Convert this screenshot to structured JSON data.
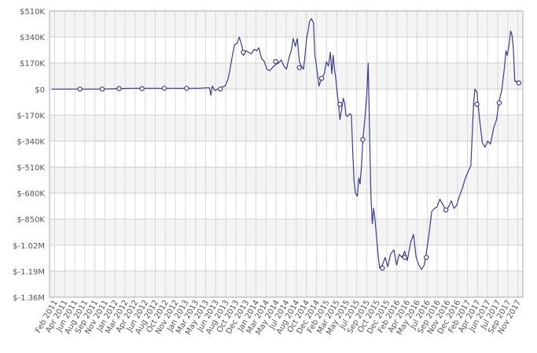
{
  "chart_data": {
    "type": "line",
    "title": "",
    "xlabel": "",
    "ylabel": "",
    "y_ticks": [
      "$510K",
      "$340K",
      "$170K",
      "$0",
      "$-170K",
      "$-340K",
      "$-510K",
      "$-680K",
      "$-850K",
      "$-1.02M",
      "$-1.19M",
      "$-1.36M"
    ],
    "y_tick_values": [
      510000,
      340000,
      170000,
      0,
      -170000,
      -340000,
      -510000,
      -680000,
      -850000,
      -1020000,
      -1190000,
      -1360000
    ],
    "ylim": [
      -1360000,
      510000
    ],
    "x_tick_labels": [
      "Feb 2011",
      "Apr 2011",
      "Jun 2011",
      "Aug 2011",
      "Sep 2011",
      "Nov 2011",
      "Jan 2012",
      "Mar 2012",
      "Apr 2012",
      "Jun 2012",
      "Aug 2012",
      "Oct 2012",
      "Nov 2012",
      "Jan 2013",
      "Mar 2013",
      "May 2013",
      "Jun 2013",
      "Aug 2013",
      "Oct 2013",
      "Dec 2013",
      "Jan 2014",
      "Mar 2014",
      "May 2014",
      "Jul 2014",
      "Aug 2014",
      "Oct 2014",
      "Dec 2014",
      "Feb 2015",
      "Mar 2015",
      "May 2015",
      "Jul 2015",
      "Sep 2015",
      "Oct 2015",
      "Dec 2015",
      "Feb 2016",
      "Apr 2016",
      "May 2016",
      "Jul 2016",
      "Sep 2016",
      "Nov 2016",
      "Dec 2016",
      "Feb 2017",
      "Apr 2017",
      "Jun 2017",
      "Jul 2017",
      "Sep 2017",
      "Nov 2017"
    ],
    "grid": true,
    "line_color": "#3b3b8f",
    "series": [
      {
        "values": [
          [
            2011.08,
            0
          ],
          [
            2011.5,
            0
          ],
          [
            2011.83,
            0
          ],
          [
            2012.0,
            2000
          ],
          [
            2012.25,
            5000
          ],
          [
            2012.5,
            5000
          ],
          [
            2012.75,
            5000
          ],
          [
            2013.0,
            5000
          ],
          [
            2013.25,
            5000
          ],
          [
            2013.38,
            8000
          ],
          [
            2013.42,
            8000
          ],
          [
            2013.44,
            -40000
          ],
          [
            2013.46,
            20000
          ],
          [
            2013.5,
            -10000
          ],
          [
            2013.54,
            0
          ],
          [
            2013.58,
            10000
          ],
          [
            2013.65,
            20000
          ],
          [
            2013.69,
            60000
          ],
          [
            2013.72,
            120000
          ],
          [
            2013.75,
            200000
          ],
          [
            2013.79,
            290000
          ],
          [
            2013.83,
            300000
          ],
          [
            2013.86,
            340000
          ],
          [
            2013.9,
            280000
          ],
          [
            2013.92,
            220000
          ],
          [
            2013.96,
            250000
          ],
          [
            2014.0,
            240000
          ],
          [
            2014.04,
            230000
          ],
          [
            2014.08,
            260000
          ],
          [
            2014.12,
            250000
          ],
          [
            2014.15,
            270000
          ],
          [
            2014.19,
            200000
          ],
          [
            2014.23,
            180000
          ],
          [
            2014.27,
            130000
          ],
          [
            2014.31,
            120000
          ],
          [
            2014.35,
            140000
          ],
          [
            2014.4,
            160000
          ],
          [
            2014.44,
            170000
          ],
          [
            2014.48,
            190000
          ],
          [
            2014.52,
            150000
          ],
          [
            2014.56,
            130000
          ],
          [
            2014.6,
            210000
          ],
          [
            2014.63,
            250000
          ],
          [
            2014.66,
            330000
          ],
          [
            2014.69,
            280000
          ],
          [
            2014.72,
            330000
          ],
          [
            2014.75,
            180000
          ],
          [
            2014.78,
            150000
          ],
          [
            2014.81,
            130000
          ],
          [
            2014.83,
            200000
          ],
          [
            2014.86,
            340000
          ],
          [
            2014.88,
            380000
          ],
          [
            2014.9,
            440000
          ],
          [
            2014.93,
            460000
          ],
          [
            2014.96,
            430000
          ],
          [
            2014.98,
            220000
          ],
          [
            2015.0,
            160000
          ],
          [
            2015.04,
            20000
          ],
          [
            2015.08,
            70000
          ],
          [
            2015.12,
            100000
          ],
          [
            2015.15,
            180000
          ],
          [
            2015.18,
            150000
          ],
          [
            2015.21,
            240000
          ],
          [
            2015.23,
            100000
          ],
          [
            2015.25,
            220000
          ],
          [
            2015.27,
            130000
          ],
          [
            2015.29,
            70000
          ],
          [
            2015.31,
            -20000
          ],
          [
            2015.33,
            -100000
          ],
          [
            2015.35,
            -200000
          ],
          [
            2015.37,
            -150000
          ],
          [
            2015.4,
            -60000
          ],
          [
            2015.42,
            -90000
          ],
          [
            2015.44,
            -170000
          ],
          [
            2015.46,
            -180000
          ],
          [
            2015.5,
            -160000
          ],
          [
            2015.52,
            -170000
          ],
          [
            2015.54,
            -400000
          ],
          [
            2015.56,
            -600000
          ],
          [
            2015.58,
            -680000
          ],
          [
            2015.61,
            -700000
          ],
          [
            2015.63,
            -580000
          ],
          [
            2015.65,
            -620000
          ],
          [
            2015.67,
            -500000
          ],
          [
            2015.69,
            -330000
          ],
          [
            2015.72,
            -200000
          ],
          [
            2015.75,
            -30000
          ],
          [
            2015.77,
            170000
          ],
          [
            2015.79,
            -300000
          ],
          [
            2015.81,
            -700000
          ],
          [
            2015.83,
            -880000
          ],
          [
            2015.85,
            -780000
          ],
          [
            2015.87,
            -850000
          ],
          [
            2015.92,
            -1100000
          ],
          [
            2015.94,
            -1170000
          ],
          [
            2015.98,
            -1150000
          ],
          [
            2016.02,
            -1100000
          ],
          [
            2016.06,
            -1160000
          ],
          [
            2016.1,
            -1080000
          ],
          [
            2016.15,
            -1050000
          ],
          [
            2016.19,
            -1150000
          ],
          [
            2016.23,
            -1080000
          ],
          [
            2016.27,
            -1100000
          ],
          [
            2016.31,
            -1060000
          ],
          [
            2016.35,
            -1120000
          ],
          [
            2016.4,
            -1000000
          ],
          [
            2016.44,
            -950000
          ],
          [
            2016.48,
            -1100000
          ],
          [
            2016.52,
            -1150000
          ],
          [
            2016.56,
            -1180000
          ],
          [
            2016.6,
            -1150000
          ],
          [
            2016.63,
            -1070000
          ],
          [
            2016.67,
            -950000
          ],
          [
            2016.71,
            -800000
          ],
          [
            2016.75,
            -780000
          ],
          [
            2016.79,
            -770000
          ],
          [
            2016.83,
            -720000
          ],
          [
            2016.88,
            -760000
          ],
          [
            2016.92,
            -790000
          ],
          [
            2016.96,
            -770000
          ],
          [
            2017.0,
            -730000
          ],
          [
            2017.04,
            -780000
          ],
          [
            2017.08,
            -760000
          ],
          [
            2017.12,
            -700000
          ],
          [
            2017.17,
            -640000
          ],
          [
            2017.21,
            -580000
          ],
          [
            2017.25,
            -540000
          ],
          [
            2017.29,
            -500000
          ],
          [
            2017.31,
            -300000
          ],
          [
            2017.33,
            -100000
          ],
          [
            2017.35,
            0
          ],
          [
            2017.38,
            -20000
          ],
          [
            2017.42,
            -200000
          ],
          [
            2017.46,
            -350000
          ],
          [
            2017.5,
            -380000
          ],
          [
            2017.54,
            -340000
          ],
          [
            2017.58,
            -360000
          ],
          [
            2017.63,
            -250000
          ],
          [
            2017.67,
            -200000
          ],
          [
            2017.71,
            -80000
          ],
          [
            2017.75,
            0
          ],
          [
            2017.79,
            150000
          ],
          [
            2017.81,
            250000
          ],
          [
            2017.83,
            220000
          ],
          [
            2017.85,
            270000
          ],
          [
            2017.88,
            380000
          ],
          [
            2017.9,
            350000
          ],
          [
            2017.92,
            260000
          ],
          [
            2017.94,
            50000
          ],
          [
            2017.98,
            50000
          ],
          [
            2018.02,
            50000
          ]
        ]
      }
    ],
    "markers": [
      [
        2011.5,
        0
      ],
      [
        2011.83,
        0
      ],
      [
        2012.08,
        3000
      ],
      [
        2012.42,
        3000
      ],
      [
        2012.75,
        5000
      ],
      [
        2013.08,
        5000
      ],
      [
        2013.58,
        0
      ],
      [
        2013.92,
        240000
      ],
      [
        2014.4,
        180000
      ],
      [
        2014.75,
        140000
      ],
      [
        2015.08,
        70000
      ],
      [
        2015.35,
        -100000
      ],
      [
        2015.69,
        -330000
      ],
      [
        2015.98,
        -1170000
      ],
      [
        2016.31,
        -1100000
      ],
      [
        2016.63,
        -1100000
      ],
      [
        2016.92,
        -790000
      ],
      [
        2017.38,
        -100000
      ],
      [
        2017.71,
        -90000
      ],
      [
        2018.0,
        40000
      ]
    ]
  }
}
